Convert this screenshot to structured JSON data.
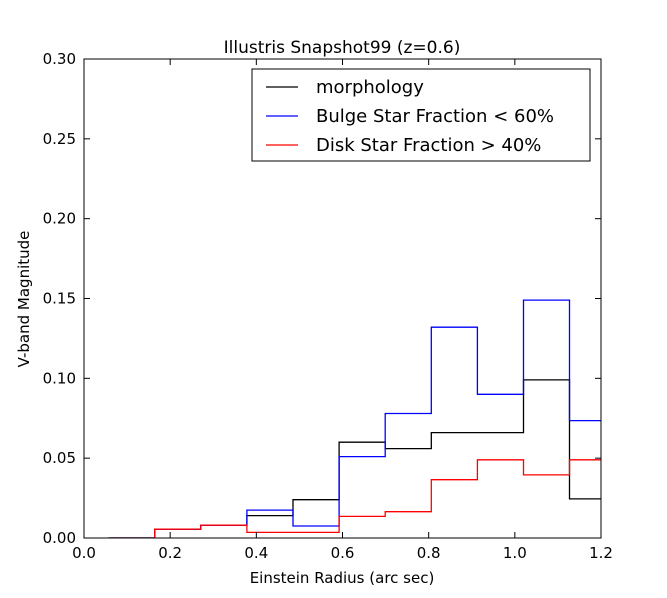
{
  "chart_data": {
    "type": "histogram-step",
    "title": "Illustris Snapshot99 (z=0.6)",
    "xlabel": "Einstein Radius (arc sec)",
    "ylabel": "V-band Magnitude",
    "xlim": [
      0.0,
      1.2
    ],
    "ylim": [
      0.0,
      0.3
    ],
    "x_ticks": [
      0.0,
      0.2,
      0.4,
      0.6,
      0.8,
      1.0,
      1.2
    ],
    "x_tick_labels": [
      "0.0",
      "0.2",
      "0.4",
      "0.6",
      "0.8",
      "1.0",
      "1.2"
    ],
    "y_ticks": [
      0.0,
      0.05,
      0.1,
      0.15,
      0.2,
      0.25,
      0.3
    ],
    "y_tick_labels": [
      "0.00",
      "0.05",
      "0.10",
      "0.15",
      "0.20",
      "0.25",
      "0.30"
    ],
    "grid": false,
    "legend_position": "top-right",
    "bin_edges": [
      0.057,
      0.164,
      0.271,
      0.378,
      0.485,
      0.592,
      0.699,
      0.806,
      0.913,
      1.02,
      1.127,
      1.234
    ],
    "series": [
      {
        "name": "morphology",
        "color": "#000000",
        "values": [
          0.0,
          0.0055,
          0.008,
          0.014,
          0.024,
          0.06,
          0.056,
          0.066,
          0.066,
          0.099,
          0.0245
        ]
      },
      {
        "name": "Bulge Star Fraction < 60%",
        "color": "#0000ff",
        "values": [
          0.0,
          0.0055,
          0.008,
          0.0175,
          0.0075,
          0.051,
          0.078,
          0.132,
          0.09,
          0.149,
          0.0735
        ]
      },
      {
        "name": "Disk Star Fraction > 40%",
        "color": "#ff0000",
        "values": [
          0.0,
          0.0055,
          0.008,
          0.0035,
          0.0035,
          0.0135,
          0.0165,
          0.0365,
          0.049,
          0.0395,
          0.049
        ]
      }
    ]
  }
}
